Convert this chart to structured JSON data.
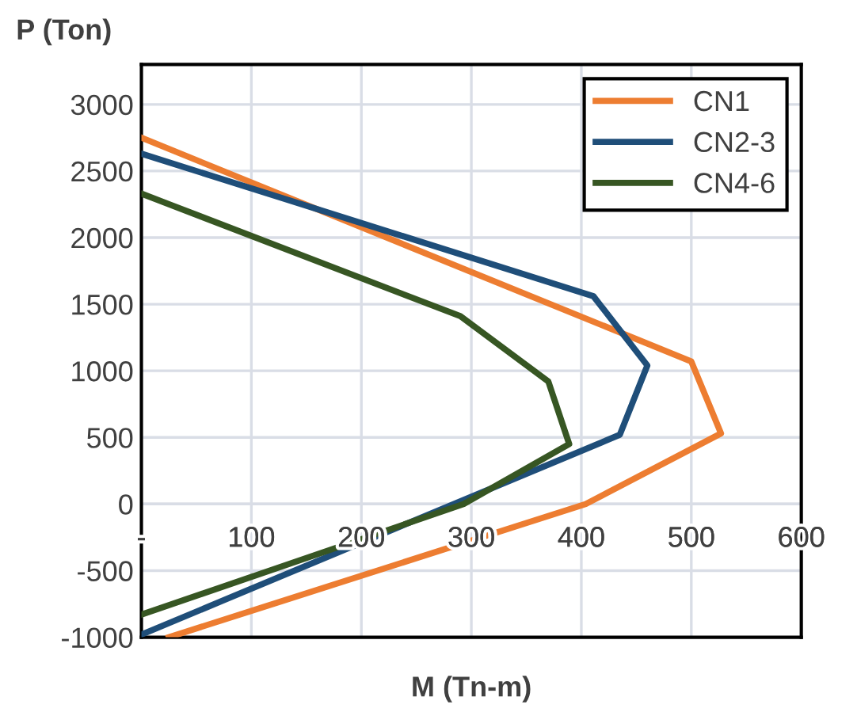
{
  "chart_data": {
    "type": "line",
    "xlabel": "M (Tn-m)",
    "ylabel": "P (Ton)",
    "series": [
      {
        "name": "CN1",
        "color": "#ed7d31",
        "x": [
          0,
          500,
          527,
          404,
          25
        ],
        "values": [
          2750,
          1070,
          530,
          0,
          -1000
        ]
      },
      {
        "name": "CN2-3",
        "color": "#1f4e79",
        "x": [
          0,
          411,
          460,
          435,
          0
        ],
        "values": [
          2630,
          1560,
          1040,
          520,
          -980
        ]
      },
      {
        "name": "CN4-6",
        "color": "#375623",
        "x": [
          0,
          290,
          370,
          389,
          293,
          0
        ],
        "values": [
          2330,
          1410,
          920,
          450,
          0,
          -830
        ]
      }
    ],
    "xlim": [
      0,
      600
    ],
    "ylim": [
      -1000,
      3300
    ],
    "xticks": [
      {
        "value": 0,
        "label": "-"
      },
      100,
      200,
      300,
      400,
      500,
      600
    ],
    "yticks": [
      -1000,
      -500,
      0,
      500,
      1000,
      1500,
      2000,
      2500,
      3000
    ],
    "grid": true,
    "legend": "top right",
    "marker": "none",
    "line_style": "solid"
  }
}
